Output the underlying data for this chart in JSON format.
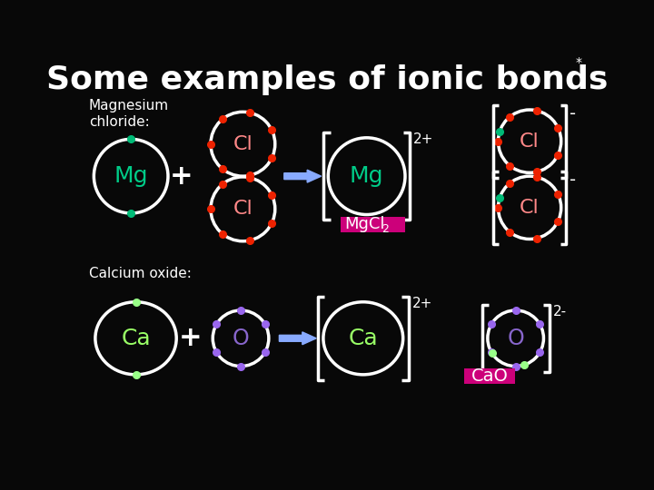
{
  "title": "Some examples of ionic bonds",
  "title_color": "#ffffff",
  "title_fontsize": 26,
  "bg_color": "#080808",
  "star_text": "*",
  "label_mg_chloride": "Magnesium\nchloride:",
  "label_ca_oxide": "Calcium oxide:",
  "label_color": "#ffffff",
  "formula_bg": "#cc007a",
  "formula_text_color": "#ffffff",
  "ion_text_color_mg": "#00cc88",
  "ion_text_color_cl": "#ff8888",
  "ion_text_color_ca": "#99ff66",
  "ion_text_color_o": "#8866cc",
  "white": "#ffffff",
  "red_dot": "#ee2200",
  "green_dot": "#00bb77",
  "purple_dot": "#9966ee",
  "light_green_dot": "#99ff88",
  "arrow_color": "#88aaff",
  "bracket_color": "#ffffff",
  "charge_color": "#ffffff"
}
